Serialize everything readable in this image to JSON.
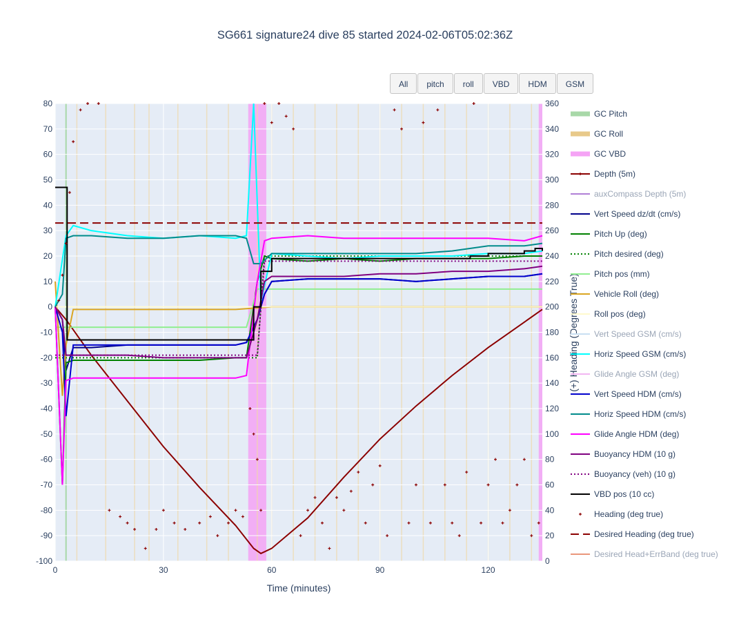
{
  "title": "SG661 signature24 dive 85 started 2024-02-06T05:02:36Z",
  "buttons": [
    "All",
    "pitch",
    "roll",
    "VBD",
    "HDM",
    "GSM"
  ],
  "chart_data": {
    "type": "line",
    "xlabel": "Time (minutes)",
    "ylabel": "",
    "y2label": "(+) Heading (Degrees True)",
    "xlim": [
      0,
      135
    ],
    "ylim": [
      -100,
      80
    ],
    "y2lim": [
      0,
      360
    ],
    "xticks": [
      0,
      30,
      60,
      90,
      120
    ],
    "yticks": [
      80,
      70,
      60,
      50,
      40,
      30,
      20,
      10,
      0,
      -10,
      -20,
      -30,
      -40,
      -50,
      -60,
      -70,
      -80,
      -90,
      -100
    ],
    "y2ticks": [
      360,
      340,
      320,
      300,
      280,
      260,
      240,
      220,
      200,
      180,
      160,
      140,
      120,
      100,
      80,
      60,
      40,
      20,
      0
    ],
    "grid": true,
    "legend_position": "right",
    "gc_vbd_bands": [
      [
        53.5,
        58.5
      ],
      [
        134,
        135
      ]
    ],
    "gc_pitch_lines": [
      3
    ],
    "gc_roll_lines": [
      6,
      14,
      22,
      26,
      34,
      42,
      48,
      56,
      60,
      66,
      72,
      78,
      84,
      90,
      96,
      102,
      108,
      114,
      120,
      126,
      132
    ],
    "series": [
      {
        "name": "GC Pitch",
        "color": "#a8d8a8",
        "style": "band-legend",
        "visible": true
      },
      {
        "name": "GC Roll",
        "color": "#e8c98a",
        "style": "band-legend",
        "visible": true
      },
      {
        "name": "GC VBD",
        "color": "#f5a3f5",
        "style": "band-legend",
        "visible": true
      },
      {
        "name": "Depth (5m)",
        "color": "#8b0000",
        "style": "line-marker",
        "visible": true,
        "x": [
          0,
          3,
          10,
          20,
          30,
          40,
          50,
          55,
          57,
          60,
          70,
          80,
          90,
          100,
          110,
          120,
          130,
          135
        ],
        "y": [
          0,
          -5,
          -19,
          -37,
          -55,
          -71,
          -86,
          -95,
          -97,
          -95,
          -83,
          -67,
          -52,
          -39,
          -27,
          -16,
          -6,
          -1
        ]
      },
      {
        "name": "auxCompass Depth (5m)",
        "color": "#b07fd6",
        "style": "line",
        "visible": false
      },
      {
        "name": "Vert Speed dz/dt (cm/s)",
        "color": "#00008b",
        "style": "line",
        "visible": true,
        "x": [
          0,
          2,
          3,
          5,
          10,
          20,
          30,
          40,
          50,
          53,
          56,
          58,
          60,
          70,
          80,
          90,
          100,
          110,
          120,
          130,
          135
        ],
        "y": [
          0,
          -5,
          -25,
          -16,
          -16,
          -15,
          -15,
          -15,
          -15,
          -14,
          -5,
          5,
          10,
          11,
          11,
          11,
          10,
          11,
          12,
          12,
          13
        ]
      },
      {
        "name": "Pitch Up (deg)",
        "color": "#008000",
        "style": "line",
        "visible": true,
        "x": [
          0,
          2,
          3,
          5,
          10,
          20,
          30,
          40,
          50,
          53,
          56,
          58,
          60,
          70,
          80,
          90,
          100,
          110,
          120,
          130,
          135
        ],
        "y": [
          0,
          -70,
          -22,
          -21,
          -21,
          -21,
          -21,
          -21,
          -20,
          -20,
          10,
          20,
          19,
          18,
          19,
          18,
          19,
          19,
          19,
          20,
          20
        ]
      },
      {
        "name": "Pitch desired (deg)",
        "color": "#008000",
        "style": "dot",
        "visible": true,
        "x": [
          0,
          3,
          53,
          56,
          58,
          135
        ],
        "y": [
          -20,
          -20,
          -20,
          -20,
          20,
          20
        ]
      },
      {
        "name": "Pitch pos (mm)",
        "color": "#90ee90",
        "style": "line",
        "visible": true,
        "x": [
          0,
          3,
          53,
          56,
          135
        ],
        "y": [
          -8,
          -8,
          -8,
          7,
          7
        ]
      },
      {
        "name": "Vehicle Roll (deg)",
        "color": "#daa520",
        "style": "line",
        "visible": true,
        "x": [
          0,
          2,
          3,
          5,
          10,
          20,
          30,
          40,
          50,
          60,
          70,
          80,
          90,
          100,
          110,
          120,
          130,
          135
        ],
        "y": [
          10,
          -35,
          -15,
          -1,
          -1,
          -1,
          -1,
          -1,
          -1,
          0,
          0,
          0,
          0,
          0,
          0,
          0,
          0,
          0
        ]
      },
      {
        "name": "Roll pos (deg)",
        "color": "#fffacd",
        "style": "line",
        "visible": true,
        "x": [
          0,
          3,
          53,
          58,
          135
        ],
        "y": [
          0,
          0,
          0,
          0,
          0
        ]
      },
      {
        "name": "Vert Speed GSM (cm/s)",
        "color": "#c9dff2",
        "style": "line",
        "visible": false
      },
      {
        "name": "Horiz Speed GSM (cm/s)",
        "color": "#00ffff",
        "style": "line",
        "visible": true,
        "x": [
          0,
          3,
          5,
          10,
          20,
          30,
          40,
          50,
          53,
          55,
          57,
          60,
          70,
          80,
          90,
          100,
          110,
          120,
          130,
          135
        ],
        "y": [
          0,
          28,
          32,
          30,
          28,
          27,
          28,
          27,
          28,
          80,
          2,
          21,
          20,
          19,
          20,
          20,
          20,
          21,
          21,
          22
        ]
      },
      {
        "name": "Glide Angle GSM (deg)",
        "color": "#f2b6f2",
        "style": "line",
        "visible": false
      },
      {
        "name": "Vert Speed HDM (cm/s)",
        "color": "#0000cd",
        "style": "line",
        "visible": true,
        "x": [
          0,
          2,
          3,
          5,
          10,
          20,
          30,
          40,
          50,
          53,
          56,
          58,
          60,
          70,
          80,
          90,
          100,
          110,
          120,
          130,
          135
        ],
        "y": [
          0,
          -10,
          -43,
          -15,
          -15,
          -15,
          -15,
          -15,
          -15,
          -14,
          -5,
          5,
          10,
          11,
          11,
          11,
          10,
          11,
          12,
          12,
          13
        ]
      },
      {
        "name": "Horiz Speed HDM (cm/s)",
        "color": "#008b8b",
        "style": "line",
        "visible": true,
        "x": [
          0,
          2,
          3,
          5,
          10,
          20,
          30,
          40,
          50,
          53,
          55,
          57,
          60,
          70,
          80,
          90,
          100,
          110,
          120,
          130,
          135
        ],
        "y": [
          0,
          5,
          27,
          28,
          28,
          27,
          27,
          28,
          28,
          27,
          17,
          17,
          21,
          21,
          21,
          21,
          21,
          22,
          24,
          24,
          25
        ]
      },
      {
        "name": "Glide Angle HDM (deg)",
        "color": "#ff00ff",
        "style": "line",
        "visible": true,
        "x": [
          0,
          2,
          3,
          5,
          10,
          20,
          30,
          40,
          50,
          53,
          56,
          58,
          60,
          70,
          80,
          90,
          100,
          110,
          120,
          130,
          135
        ],
        "y": [
          0,
          -70,
          -29,
          -28,
          -28,
          -28,
          -28,
          -28,
          -28,
          -27,
          10,
          26,
          27,
          28,
          27,
          27,
          27,
          27,
          27,
          26,
          28
        ]
      },
      {
        "name": "Buoyancy HDM (10 g)",
        "color": "#800080",
        "style": "line",
        "visible": true,
        "x": [
          0,
          2,
          3,
          5,
          10,
          20,
          30,
          40,
          50,
          53,
          56,
          58,
          60,
          70,
          80,
          90,
          100,
          110,
          120,
          130,
          135
        ],
        "y": [
          0,
          -5,
          -19,
          -19,
          -19,
          -19,
          -20,
          -20,
          -20,
          -20,
          -5,
          10,
          12,
          12,
          12,
          13,
          13,
          14,
          14,
          15,
          16
        ]
      },
      {
        "name": "Buoyancy (veh) (10 g)",
        "color": "#800080",
        "style": "dot",
        "visible": true,
        "x": [
          0,
          3,
          53,
          56,
          58,
          135
        ],
        "y": [
          -19,
          -19,
          -19,
          -19,
          18,
          18
        ]
      },
      {
        "name": "VBD pos (10 cc)",
        "color": "#000000",
        "style": "step",
        "visible": true,
        "x": [
          0,
          3,
          3.3,
          53,
          55,
          57,
          60,
          103,
          115,
          120,
          130,
          133,
          135
        ],
        "y": [
          47,
          47,
          -13,
          -13,
          0,
          14,
          19,
          19,
          20,
          21,
          22,
          23,
          22
        ]
      },
      {
        "name": "Heading (deg true)",
        "color": "#8b0000",
        "style": "markers",
        "visible": true,
        "axis": "y2",
        "x": [
          1,
          2,
          3,
          4,
          5,
          7,
          9,
          12,
          15,
          18,
          20,
          22,
          25,
          28,
          30,
          33,
          36,
          40,
          43,
          45,
          48,
          50,
          52,
          54,
          55,
          56,
          57,
          58,
          60,
          62,
          64,
          66,
          68,
          70,
          72,
          74,
          76,
          78,
          80,
          82,
          84,
          86,
          88,
          90,
          92,
          94,
          96,
          98,
          100,
          102,
          104,
          106,
          108,
          110,
          112,
          114,
          116,
          118,
          120,
          122,
          124,
          126,
          128,
          130,
          132,
          134
        ],
        "y": [
          205,
          225,
          250,
          290,
          330,
          355,
          360,
          360,
          40,
          35,
          30,
          25,
          10,
          25,
          40,
          30,
          25,
          30,
          35,
          20,
          30,
          40,
          35,
          120,
          100,
          80,
          40,
          360,
          345,
          360,
          350,
          340,
          20,
          40,
          50,
          30,
          10,
          50,
          40,
          55,
          70,
          30,
          60,
          75,
          20,
          355,
          340,
          30,
          60,
          345,
          30,
          355,
          60,
          30,
          20,
          70,
          360,
          30,
          60,
          80,
          30,
          40,
          60,
          80,
          20,
          30
        ]
      },
      {
        "name": "Desired Heading (deg true)",
        "color": "#8b0000",
        "style": "dash",
        "visible": true,
        "axis": "y2",
        "x": [
          0,
          135
        ],
        "y": [
          266,
          266
        ]
      },
      {
        "name": "Desired Head+ErrBand (deg true)",
        "color": "#e9967a",
        "style": "line",
        "visible": false
      }
    ]
  }
}
